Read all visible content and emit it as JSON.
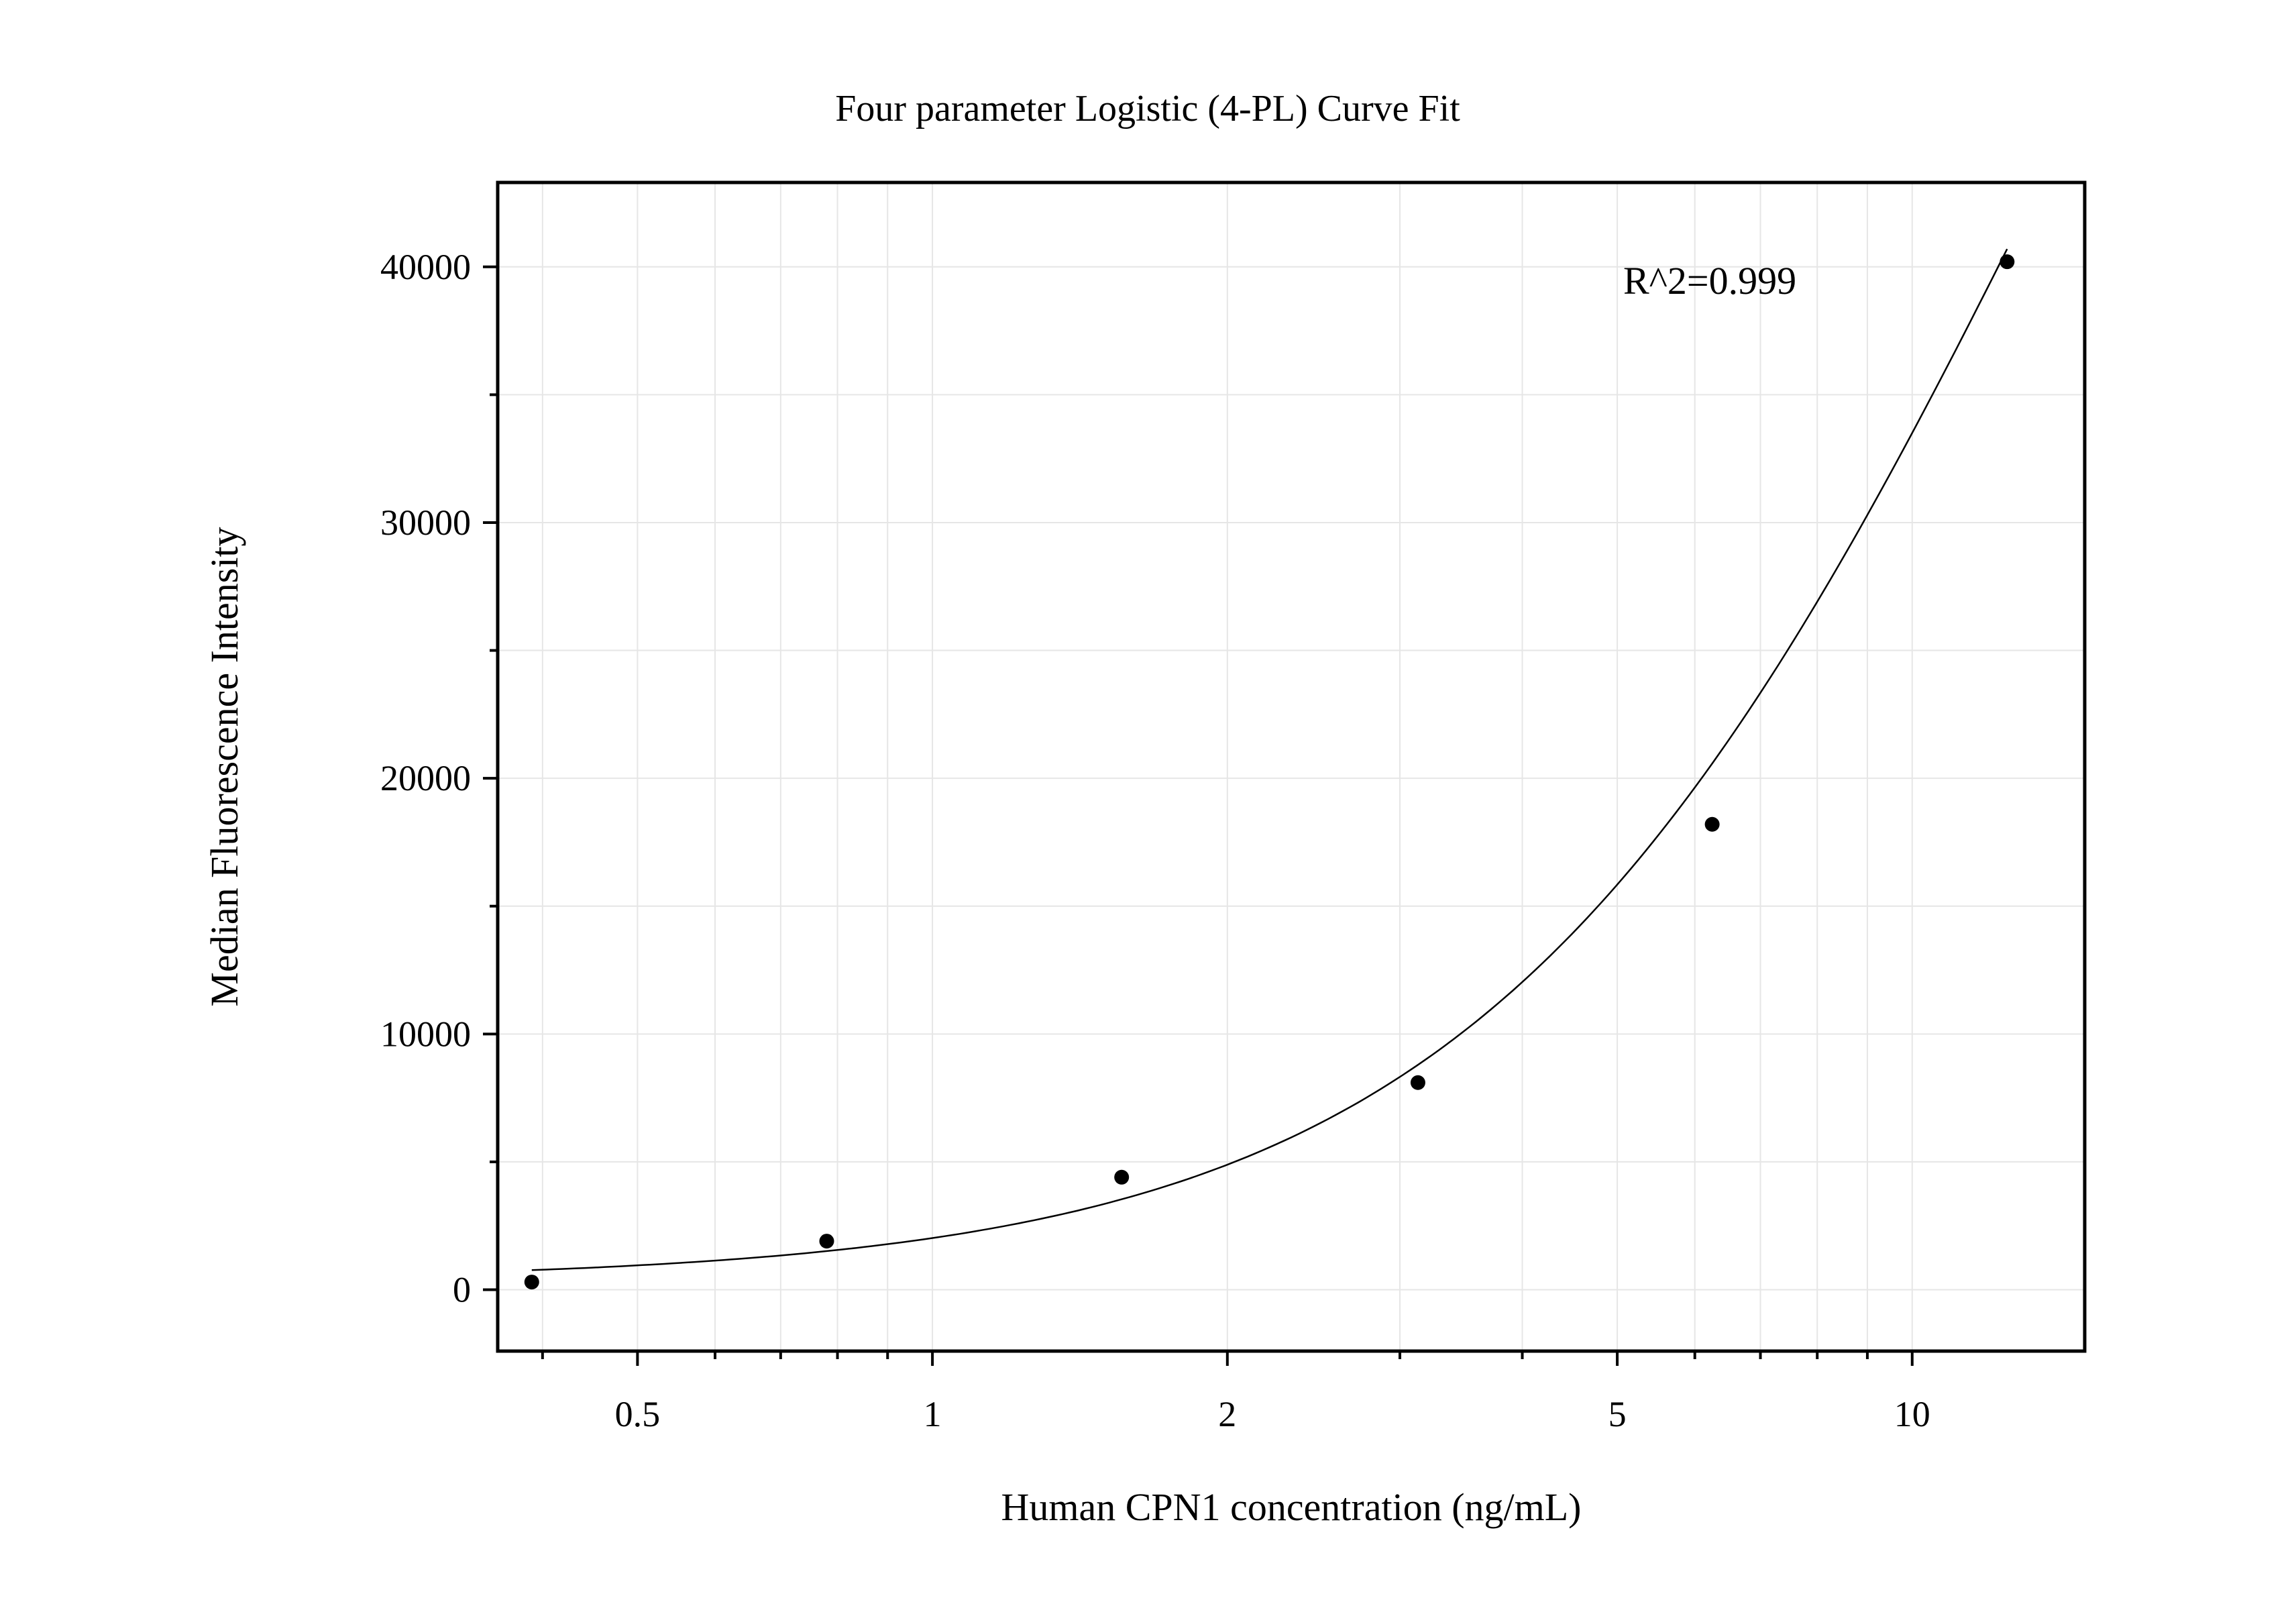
{
  "chart_data": {
    "type": "scatter",
    "title": "Four parameter Logistic (4-PL) Curve Fit",
    "xlabel": "Human CPN1 concentration (ng/mL)",
    "ylabel": "Median Fluorescence Intensity",
    "x_scale": "log",
    "xlim": [
      0.36,
      15
    ],
    "ylim": [
      -2400,
      43300
    ],
    "x_ticks": [
      0.5,
      1,
      2,
      5,
      10
    ],
    "x_tick_labels": [
      "0.5",
      "1",
      "2",
      "5",
      "10"
    ],
    "y_ticks": [
      0,
      10000,
      20000,
      30000,
      40000
    ],
    "y_tick_labels": [
      "0",
      "10000",
      "20000",
      "30000",
      "40000"
    ],
    "grid": true,
    "annotation": "R^2=0.999",
    "points": {
      "x": [
        0.39,
        0.78,
        1.56,
        3.13,
        6.25,
        12.5
      ],
      "y": [
        300,
        1900,
        4400,
        8100,
        18200,
        40200
      ]
    },
    "fit_curve": {
      "model": "4PL",
      "A": 350,
      "B": 1.49,
      "C": 14.3,
      "D": 90000
    }
  }
}
